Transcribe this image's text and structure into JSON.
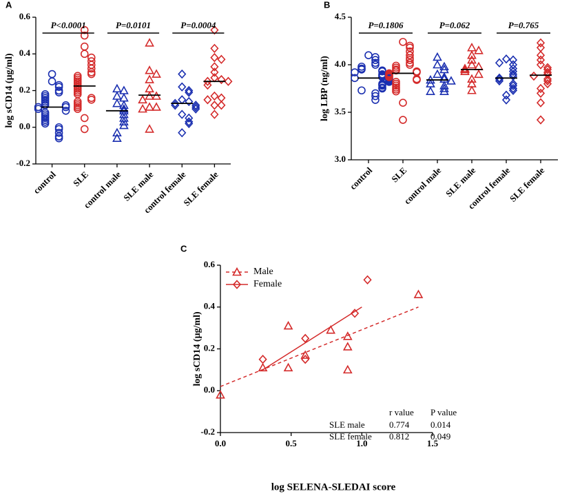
{
  "chart_data": [
    {
      "type": "dot",
      "panel": "A",
      "ylabel": "log sCD14 (μg/ml)",
      "categories": [
        "control",
        "SLE",
        "control male",
        "SLE male",
        "control female",
        "SLE female"
      ],
      "colors": [
        "#1a2fb0",
        "#d42a2a",
        "#1a2fb0",
        "#d42a2a",
        "#1a2fb0",
        "#d42a2a"
      ],
      "markers": [
        "circle",
        "circle",
        "triangle",
        "triangle",
        "diamond",
        "diamond"
      ],
      "values": [
        [
          0.29,
          0.25,
          0.23,
          0.22,
          0.2,
          0.19,
          0.18,
          0.17,
          0.16,
          0.15,
          0.14,
          0.13,
          0.12,
          0.12,
          0.11,
          0.11,
          0.1,
          0.09,
          0.08,
          0.07,
          0.06,
          0.05,
          0.04,
          0.03,
          0.02,
          0.0,
          -0.01,
          -0.03,
          -0.05,
          -0.06
        ],
        [
          0.53,
          0.5,
          0.44,
          0.4,
          0.38,
          0.36,
          0.34,
          0.32,
          0.3,
          0.29,
          0.28,
          0.27,
          0.26,
          0.25,
          0.24,
          0.23,
          0.22,
          0.21,
          0.2,
          0.19,
          0.18,
          0.16,
          0.15,
          0.14,
          0.13,
          0.12,
          0.11,
          0.1,
          0.05,
          -0.01
        ],
        [
          0.21,
          0.2,
          0.17,
          0.16,
          0.13,
          0.12,
          0.1,
          0.09,
          0.07,
          0.05,
          0.03,
          0.01,
          -0.03,
          -0.06
        ],
        [
          0.46,
          0.31,
          0.29,
          0.26,
          0.21,
          0.17,
          0.17,
          0.15,
          0.11,
          0.11,
          0.1,
          -0.01
        ],
        [
          0.29,
          0.22,
          0.2,
          0.19,
          0.15,
          0.14,
          0.13,
          0.12,
          0.12,
          0.11,
          0.1,
          0.07,
          0.05,
          0.03,
          0.02,
          -0.03
        ],
        [
          0.53,
          0.43,
          0.38,
          0.37,
          0.33,
          0.3,
          0.27,
          0.26,
          0.25,
          0.25,
          0.23,
          0.17,
          0.16,
          0.15,
          0.12,
          0.12,
          0.07
        ]
      ],
      "medians": [
        0.11,
        0.225,
        0.09,
        0.175,
        0.13,
        0.25
      ],
      "ylim": [
        -0.2,
        0.6
      ],
      "yticks": [
        -0.2,
        {
          "value": 0,
          "label": "0.0"
        },
        0.2,
        0.4,
        0.6
      ],
      "annotations": [
        "P<0.0001",
        "P=0.0101",
        "P=0.0004"
      ]
    },
    {
      "type": "dot",
      "panel": "B",
      "ylabel": "log LBP (ng/ml)",
      "categories": [
        "control",
        "SLE",
        "control male",
        "SLE male",
        "control female",
        "SLE female"
      ],
      "colors": [
        "#1a2fb0",
        "#d42a2a",
        "#1a2fb0",
        "#d42a2a",
        "#1a2fb0",
        "#d42a2a"
      ],
      "markers": [
        "circle",
        "circle",
        "triangle",
        "triangle",
        "diamond",
        "diamond"
      ],
      "values": [
        [
          4.1,
          4.08,
          4.05,
          4.02,
          4.0,
          3.98,
          3.96,
          3.95,
          3.94,
          3.93,
          3.92,
          3.9,
          3.89,
          3.88,
          3.87,
          3.86,
          3.86,
          3.85,
          3.84,
          3.83,
          3.82,
          3.8,
          3.79,
          3.78,
          3.76,
          3.75,
          3.73,
          3.7,
          3.67,
          3.63
        ],
        [
          4.24,
          4.2,
          4.18,
          4.14,
          4.1,
          4.07,
          4.05,
          4.02,
          4.0,
          3.99,
          3.97,
          3.95,
          3.94,
          3.93,
          3.92,
          3.91,
          3.9,
          3.89,
          3.88,
          3.87,
          3.85,
          3.84,
          3.82,
          3.8,
          3.78,
          3.76,
          3.74,
          3.72,
          3.6,
          3.42
        ],
        [
          4.08,
          4.0,
          3.98,
          3.95,
          3.9,
          3.87,
          3.85,
          3.84,
          3.83,
          3.8,
          3.78,
          3.75,
          3.72,
          3.72
        ],
        [
          4.18,
          4.15,
          4.1,
          4.05,
          4.0,
          3.98,
          3.96,
          3.95,
          3.93,
          3.9,
          3.85,
          3.8,
          3.73
        ],
        [
          4.06,
          4.05,
          4.02,
          4.0,
          3.96,
          3.93,
          3.9,
          3.88,
          3.86,
          3.85,
          3.83,
          3.8,
          3.78,
          3.75,
          3.73,
          3.68,
          3.63
        ],
        [
          4.23,
          4.18,
          4.1,
          4.05,
          4.0,
          3.97,
          3.95,
          3.92,
          3.9,
          3.88,
          3.85,
          3.83,
          3.8,
          3.75,
          3.7,
          3.6,
          3.42
        ]
      ],
      "medians": [
        3.86,
        3.91,
        3.84,
        3.95,
        3.86,
        3.89
      ],
      "ylim": [
        3.0,
        4.5
      ],
      "yticks": [
        {
          "value": 3,
          "label": "3.0"
        },
        3.5,
        {
          "value": 4,
          "label": "4.0"
        },
        4.5
      ],
      "annotations": [
        "P=0.1806",
        "P=0.062",
        "P=0.765"
      ]
    },
    {
      "type": "scatter",
      "panel": "C",
      "xlabel": "log SELENA-SLEDAI score",
      "ylabel": "log sCD14 (μg/ml)",
      "series": [
        {
          "name": "Male",
          "color": "#d42a2a",
          "marker": "triangle",
          "line_style": "dashed",
          "x": [
            0,
            0.3,
            0.48,
            0.48,
            0.6,
            0.78,
            0.9,
            0.9,
            0.9,
            1.4
          ],
          "values": [
            -0.02,
            0.11,
            0.11,
            0.31,
            0.17,
            0.29,
            0.26,
            0.21,
            0.1,
            0.46
          ],
          "fit": {
            "x": [
              0,
              1.4
            ],
            "y": [
              0.02,
              0.4
            ]
          }
        },
        {
          "name": "Female",
          "color": "#d42a2a",
          "marker": "diamond",
          "line_style": "solid",
          "x": [
            0.3,
            0.6,
            0.6,
            0.95,
            1.04
          ],
          "values": [
            0.15,
            0.25,
            0.15,
            0.37,
            0.53
          ],
          "fit": {
            "x": [
              0.3,
              1.0
            ],
            "y": [
              0.1,
              0.4
            ]
          }
        }
      ],
      "xlim": [
        0,
        1.5
      ],
      "xticks": [
        {
          "value": 0,
          "label": "0.0"
        },
        0.5,
        {
          "value": 1,
          "label": "1.0"
        },
        1.5
      ],
      "ylim": [
        -0.2,
        0.6
      ],
      "yticks": [
        -0.2,
        {
          "value": 0,
          "label": "0.0"
        },
        0.2,
        0.4,
        0.6
      ],
      "stats": {
        "header": [
          "r value",
          "P value"
        ],
        "rows": [
          [
            "SLE male",
            0.774,
            0.014
          ],
          [
            "SLE female",
            0.812,
            0.049
          ]
        ]
      }
    }
  ]
}
